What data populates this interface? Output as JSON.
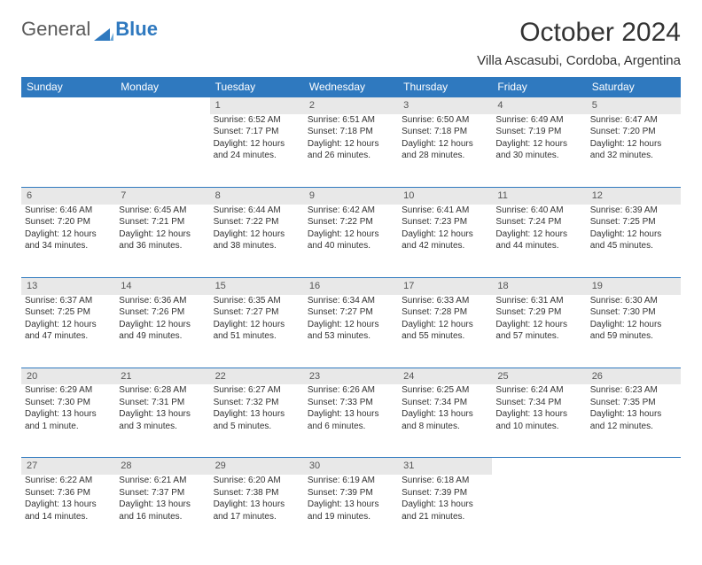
{
  "logo": {
    "word1": "General",
    "word2": "Blue",
    "shape_color": "#2f79bf"
  },
  "title": "October 2024",
  "location": "Villa Ascasubi, Cordoba, Argentina",
  "colors": {
    "header_bg": "#2f79bf",
    "header_text": "#ffffff",
    "daynum_bg": "#e8e8e8",
    "daynum_text": "#555555",
    "divider": "#2f79bf",
    "body_text": "#333333"
  },
  "day_headers": [
    "Sunday",
    "Monday",
    "Tuesday",
    "Wednesday",
    "Thursday",
    "Friday",
    "Saturday"
  ],
  "weeks": [
    [
      null,
      null,
      {
        "n": "1",
        "sr": "Sunrise: 6:52 AM",
        "ss": "Sunset: 7:17 PM",
        "dl": "Daylight: 12 hours and 24 minutes."
      },
      {
        "n": "2",
        "sr": "Sunrise: 6:51 AM",
        "ss": "Sunset: 7:18 PM",
        "dl": "Daylight: 12 hours and 26 minutes."
      },
      {
        "n": "3",
        "sr": "Sunrise: 6:50 AM",
        "ss": "Sunset: 7:18 PM",
        "dl": "Daylight: 12 hours and 28 minutes."
      },
      {
        "n": "4",
        "sr": "Sunrise: 6:49 AM",
        "ss": "Sunset: 7:19 PM",
        "dl": "Daylight: 12 hours and 30 minutes."
      },
      {
        "n": "5",
        "sr": "Sunrise: 6:47 AM",
        "ss": "Sunset: 7:20 PM",
        "dl": "Daylight: 12 hours and 32 minutes."
      }
    ],
    [
      {
        "n": "6",
        "sr": "Sunrise: 6:46 AM",
        "ss": "Sunset: 7:20 PM",
        "dl": "Daylight: 12 hours and 34 minutes."
      },
      {
        "n": "7",
        "sr": "Sunrise: 6:45 AM",
        "ss": "Sunset: 7:21 PM",
        "dl": "Daylight: 12 hours and 36 minutes."
      },
      {
        "n": "8",
        "sr": "Sunrise: 6:44 AM",
        "ss": "Sunset: 7:22 PM",
        "dl": "Daylight: 12 hours and 38 minutes."
      },
      {
        "n": "9",
        "sr": "Sunrise: 6:42 AM",
        "ss": "Sunset: 7:22 PM",
        "dl": "Daylight: 12 hours and 40 minutes."
      },
      {
        "n": "10",
        "sr": "Sunrise: 6:41 AM",
        "ss": "Sunset: 7:23 PM",
        "dl": "Daylight: 12 hours and 42 minutes."
      },
      {
        "n": "11",
        "sr": "Sunrise: 6:40 AM",
        "ss": "Sunset: 7:24 PM",
        "dl": "Daylight: 12 hours and 44 minutes."
      },
      {
        "n": "12",
        "sr": "Sunrise: 6:39 AM",
        "ss": "Sunset: 7:25 PM",
        "dl": "Daylight: 12 hours and 45 minutes."
      }
    ],
    [
      {
        "n": "13",
        "sr": "Sunrise: 6:37 AM",
        "ss": "Sunset: 7:25 PM",
        "dl": "Daylight: 12 hours and 47 minutes."
      },
      {
        "n": "14",
        "sr": "Sunrise: 6:36 AM",
        "ss": "Sunset: 7:26 PM",
        "dl": "Daylight: 12 hours and 49 minutes."
      },
      {
        "n": "15",
        "sr": "Sunrise: 6:35 AM",
        "ss": "Sunset: 7:27 PM",
        "dl": "Daylight: 12 hours and 51 minutes."
      },
      {
        "n": "16",
        "sr": "Sunrise: 6:34 AM",
        "ss": "Sunset: 7:27 PM",
        "dl": "Daylight: 12 hours and 53 minutes."
      },
      {
        "n": "17",
        "sr": "Sunrise: 6:33 AM",
        "ss": "Sunset: 7:28 PM",
        "dl": "Daylight: 12 hours and 55 minutes."
      },
      {
        "n": "18",
        "sr": "Sunrise: 6:31 AM",
        "ss": "Sunset: 7:29 PM",
        "dl": "Daylight: 12 hours and 57 minutes."
      },
      {
        "n": "19",
        "sr": "Sunrise: 6:30 AM",
        "ss": "Sunset: 7:30 PM",
        "dl": "Daylight: 12 hours and 59 minutes."
      }
    ],
    [
      {
        "n": "20",
        "sr": "Sunrise: 6:29 AM",
        "ss": "Sunset: 7:30 PM",
        "dl": "Daylight: 13 hours and 1 minute."
      },
      {
        "n": "21",
        "sr": "Sunrise: 6:28 AM",
        "ss": "Sunset: 7:31 PM",
        "dl": "Daylight: 13 hours and 3 minutes."
      },
      {
        "n": "22",
        "sr": "Sunrise: 6:27 AM",
        "ss": "Sunset: 7:32 PM",
        "dl": "Daylight: 13 hours and 5 minutes."
      },
      {
        "n": "23",
        "sr": "Sunrise: 6:26 AM",
        "ss": "Sunset: 7:33 PM",
        "dl": "Daylight: 13 hours and 6 minutes."
      },
      {
        "n": "24",
        "sr": "Sunrise: 6:25 AM",
        "ss": "Sunset: 7:34 PM",
        "dl": "Daylight: 13 hours and 8 minutes."
      },
      {
        "n": "25",
        "sr": "Sunrise: 6:24 AM",
        "ss": "Sunset: 7:34 PM",
        "dl": "Daylight: 13 hours and 10 minutes."
      },
      {
        "n": "26",
        "sr": "Sunrise: 6:23 AM",
        "ss": "Sunset: 7:35 PM",
        "dl": "Daylight: 13 hours and 12 minutes."
      }
    ],
    [
      {
        "n": "27",
        "sr": "Sunrise: 6:22 AM",
        "ss": "Sunset: 7:36 PM",
        "dl": "Daylight: 13 hours and 14 minutes."
      },
      {
        "n": "28",
        "sr": "Sunrise: 6:21 AM",
        "ss": "Sunset: 7:37 PM",
        "dl": "Daylight: 13 hours and 16 minutes."
      },
      {
        "n": "29",
        "sr": "Sunrise: 6:20 AM",
        "ss": "Sunset: 7:38 PM",
        "dl": "Daylight: 13 hours and 17 minutes."
      },
      {
        "n": "30",
        "sr": "Sunrise: 6:19 AM",
        "ss": "Sunset: 7:39 PM",
        "dl": "Daylight: 13 hours and 19 minutes."
      },
      {
        "n": "31",
        "sr": "Sunrise: 6:18 AM",
        "ss": "Sunset: 7:39 PM",
        "dl": "Daylight: 13 hours and 21 minutes."
      },
      null,
      null
    ]
  ]
}
